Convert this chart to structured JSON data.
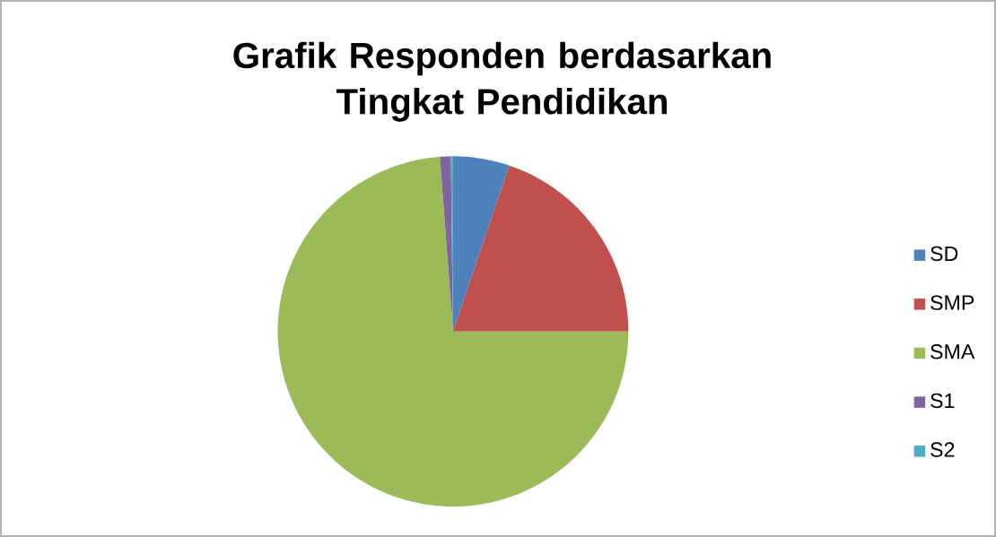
{
  "chart_data": {
    "type": "pie",
    "title": "Grafik Responden berdasarkan Tingkat Pendidikan",
    "categories": [
      "SD",
      "SMP",
      "SMA",
      "S1",
      "S2"
    ],
    "values": [
      5.2,
      19.8,
      73.8,
      1.0,
      0.2
    ],
    "colors": [
      "#4f81bd",
      "#c0504d",
      "#9bbb59",
      "#8064a2",
      "#4bacc6"
    ],
    "legend": "right"
  }
}
